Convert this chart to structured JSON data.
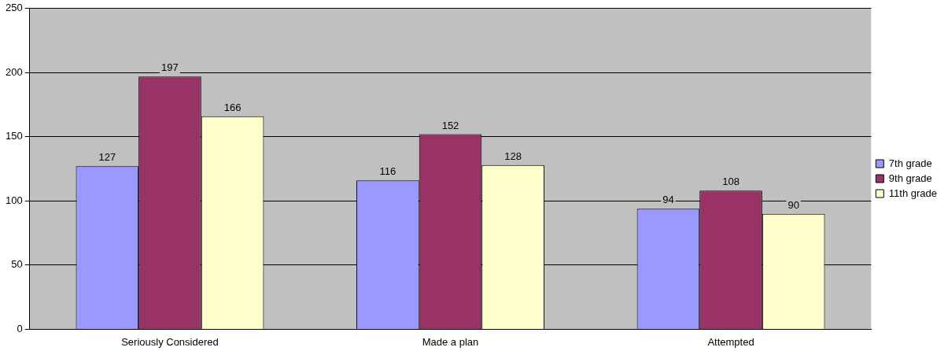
{
  "chart_data": {
    "type": "bar",
    "categories": [
      "Seriously Considered",
      "Made a plan",
      "Attempted"
    ],
    "series": [
      {
        "name": "7th grade",
        "color": "#9999ff",
        "values": [
          127,
          116,
          94
        ]
      },
      {
        "name": "9th grade",
        "color": "#993366",
        "values": [
          197,
          152,
          108
        ]
      },
      {
        "name": "11th grade",
        "color": "#ffffcc",
        "values": [
          166,
          128,
          90
        ]
      }
    ],
    "ylim": [
      0,
      250
    ],
    "yticks": [
      0,
      50,
      100,
      150,
      200,
      250
    ],
    "grid": "y",
    "legend": "right",
    "data_labels": true
  }
}
